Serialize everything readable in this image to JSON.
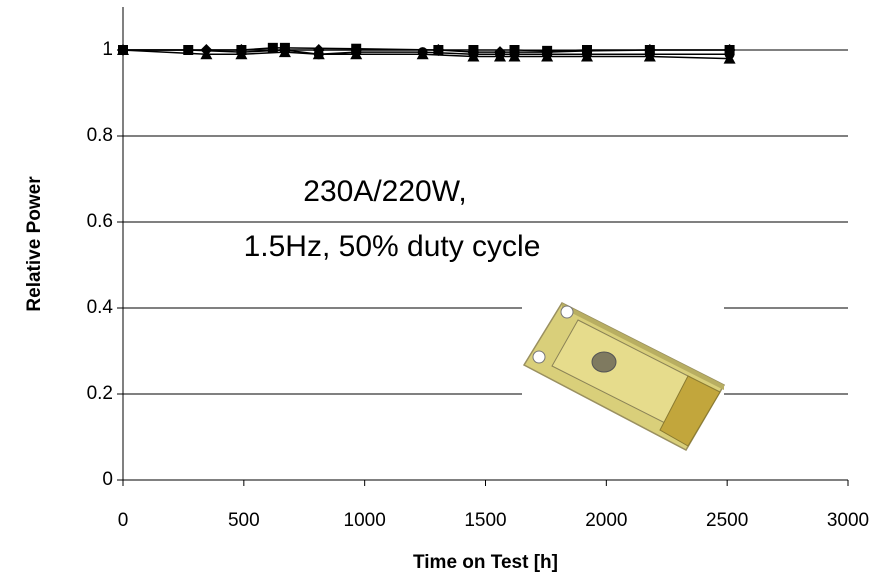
{
  "chart_data": {
    "type": "line",
    "xlabel": "Time on Test [h]",
    "ylabel": "Relative Power",
    "annotations": [
      "230A/220W,",
      "1.5Hz, 50% duty cycle"
    ],
    "xlim": [
      0,
      3000
    ],
    "xticks": [
      0,
      500,
      1000,
      1500,
      2000,
      2500,
      3000
    ],
    "ylim": [
      0,
      1.1
    ],
    "yticks": [
      0,
      0.2,
      0.4,
      0.6,
      0.8,
      1
    ],
    "grid": true,
    "series": [
      {
        "color": "#000000",
        "marker": "square",
        "x": [
          0,
          270,
          490,
          620,
          670,
          965,
          1305,
          1450,
          1620,
          1755,
          1920,
          2180,
          2510
        ],
        "values": [
          1,
          1,
          1,
          1.005,
          1.005,
          1.003,
          1,
          1,
          1,
          0.998,
          1,
          1,
          1
        ]
      },
      {
        "color": "#000000",
        "marker": "triangle",
        "x": [
          0,
          345,
          490,
          670,
          810,
          965,
          1240,
          1450,
          1560,
          1620,
          1755,
          1920,
          2180,
          2510
        ],
        "values": [
          1,
          0.99,
          0.99,
          0.995,
          0.99,
          0.99,
          0.99,
          0.985,
          0.985,
          0.985,
          0.985,
          0.985,
          0.985,
          0.98
        ]
      },
      {
        "color": "#000000",
        "marker": "diamond",
        "x": [
          0,
          345,
          490,
          670,
          810,
          965,
          1305,
          1450,
          1560,
          1755,
          1920,
          2180,
          2510
        ],
        "values": [
          1,
          1,
          1,
          1,
          1,
          1,
          1,
          0.995,
          0.995,
          0.995,
          0.998,
          1,
          1
        ]
      },
      {
        "color": "#000000",
        "marker": "circle",
        "x": [
          0,
          270,
          490,
          670,
          810,
          965,
          1240,
          1450,
          1560,
          1620,
          1755,
          1920,
          2180,
          2510
        ],
        "values": [
          1,
          1,
          0.995,
          1,
          0.99,
          0.995,
          0.995,
          0.99,
          0.99,
          0.99,
          0.99,
          0.99,
          0.99,
          0.99
        ]
      }
    ]
  }
}
